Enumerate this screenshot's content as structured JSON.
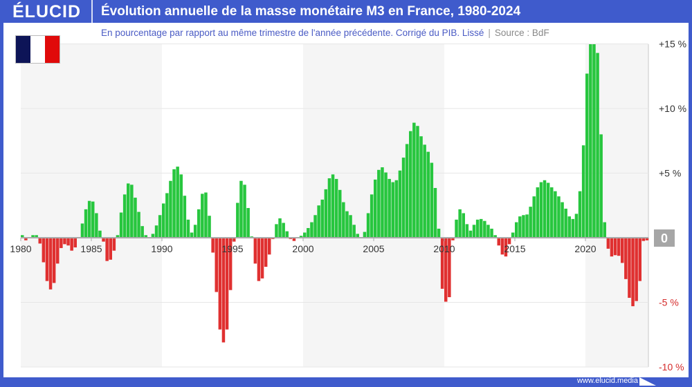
{
  "header": {
    "logo": "ÉLUCID",
    "title": "Évolution annuelle de la masse monétaire M3 en France, 1980-2024"
  },
  "subtitle": {
    "text": "En pourcentage par rapport au même trimestre de l'année précédente. Corrigé du PIB. Lissé",
    "separator": "|",
    "source": "Source : BdF"
  },
  "flag": {
    "name": "france-flag",
    "colors": [
      "#0d1457",
      "#ffffff",
      "#e00a0a"
    ]
  },
  "footer": {
    "url": "www.elucid.media"
  },
  "colors": {
    "positive": "#27c63e",
    "negative": "#e03030",
    "brand": "#3f5bcc",
    "band": "#f5f5f5"
  },
  "chart_data": {
    "type": "bar",
    "frequency": "quarterly",
    "start": "1980-Q1",
    "end": "2024-Q2",
    "x_ticks": [
      "1980",
      "1985",
      "1990",
      "1995",
      "2000",
      "2005",
      "2010",
      "2015",
      "2020"
    ],
    "y_ticks": [
      "+15 %",
      "+10 %",
      "+5 %",
      "0",
      "-5 %",
      "-10 %"
    ],
    "ylim": [
      -10,
      15
    ],
    "grid": true,
    "values": [
      0.2,
      -0.2,
      0.05,
      0.2,
      0.2,
      -0.45,
      -1.9,
      -3.35,
      -4.0,
      -3.5,
      -2.0,
      -0.8,
      -0.5,
      -0.6,
      -1.0,
      -0.75,
      0.05,
      1.1,
      2.2,
      2.85,
      2.8,
      1.9,
      0.55,
      -0.3,
      -1.8,
      -1.7,
      -1.0,
      0.2,
      1.95,
      3.35,
      4.2,
      4.1,
      3.1,
      2.0,
      0.9,
      0.2,
      0.05,
      0.3,
      0.95,
      1.75,
      2.65,
      3.45,
      4.4,
      5.3,
      5.5,
      4.9,
      3.25,
      1.4,
      0.4,
      1.0,
      2.2,
      3.4,
      3.5,
      1.7,
      -1.15,
      -4.2,
      -7.1,
      -8.1,
      -7.1,
      -4.05,
      -0.3,
      2.7,
      4.4,
      4.1,
      2.3,
      0.1,
      -2.0,
      -3.35,
      -3.15,
      -2.25,
      -1.3,
      -0.1,
      1.05,
      1.5,
      1.15,
      0.5,
      -0.1,
      -0.25,
      0,
      0.15,
      0.4,
      0.75,
      1.2,
      1.75,
      2.5,
      2.95,
      3.75,
      4.6,
      4.9,
      4.55,
      3.7,
      2.75,
      2.05,
      1.75,
      1.0,
      0.3,
      0,
      0.45,
      1.9,
      3.35,
      4.5,
      5.25,
      5.45,
      5.05,
      4.55,
      4.3,
      4.45,
      5.2,
      6.2,
      7.25,
      8.25,
      8.9,
      8.65,
      7.85,
      7.2,
      6.65,
      5.8,
      3.85,
      0.7,
      -3.95,
      -4.95,
      -4.6,
      -0.2,
      1.4,
      2.2,
      1.9,
      1.05,
      0.55,
      1.0,
      1.4,
      1.45,
      1.3,
      1.0,
      0.7,
      0.2,
      -0.6,
      -1.3,
      -1.45,
      -0.5,
      0.4,
      1.2,
      1.65,
      1.75,
      1.8,
      2.4,
      3.2,
      3.9,
      4.3,
      4.45,
      4.25,
      3.9,
      3.6,
      3.2,
      2.75,
      2.25,
      1.65,
      1.45,
      1.85,
      3.6,
      7.15,
      12.7,
      15.5,
      15.2,
      14.3,
      8.0,
      1.2,
      -0.85,
      -1.45,
      -1.35,
      -1.4,
      -1.95,
      -3.2,
      -4.65,
      -5.3,
      -4.9,
      -3.35,
      -0.25,
      -0.2
    ]
  }
}
